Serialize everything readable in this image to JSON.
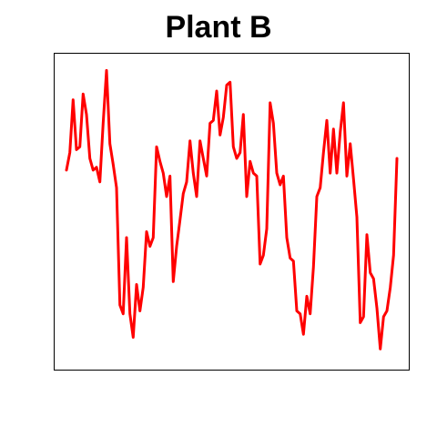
{
  "chart_data": {
    "type": "line",
    "title": "Plant B",
    "xlabel": "",
    "ylabel": "",
    "axes_shown": false,
    "grid": false,
    "series": [
      {
        "color": "#ff0000",
        "y": [
          0.64,
          0.7,
          0.88,
          0.71,
          0.72,
          0.9,
          0.83,
          0.68,
          0.64,
          0.65,
          0.6,
          0.8,
          0.98,
          0.73,
          0.66,
          0.58,
          0.18,
          0.15,
          0.41,
          0.15,
          0.07,
          0.25,
          0.16,
          0.24,
          0.43,
          0.38,
          0.41,
          0.72,
          0.67,
          0.63,
          0.55,
          0.62,
          0.26,
          0.38,
          0.47,
          0.56,
          0.6,
          0.74,
          0.63,
          0.55,
          0.74,
          0.68,
          0.62,
          0.8,
          0.81,
          0.91,
          0.76,
          0.82,
          0.93,
          0.94,
          0.72,
          0.68,
          0.7,
          0.83,
          0.55,
          0.67,
          0.63,
          0.62,
          0.32,
          0.35,
          0.44,
          0.87,
          0.8,
          0.63,
          0.59,
          0.62,
          0.41,
          0.34,
          0.33,
          0.16,
          0.15,
          0.08,
          0.21,
          0.15,
          0.31,
          0.55,
          0.58,
          0.7,
          0.81,
          0.63,
          0.78,
          0.63,
          0.77,
          0.87,
          0.62,
          0.73,
          0.61,
          0.48,
          0.12,
          0.14,
          0.42,
          0.29,
          0.27,
          0.17,
          0.03,
          0.14,
          0.16,
          0.24,
          0.35,
          0.68
        ]
      }
    ]
  }
}
